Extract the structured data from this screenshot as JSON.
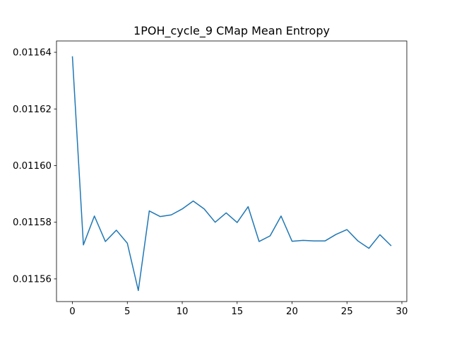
{
  "chart_data": {
    "type": "line",
    "title": "1POH_cycle_9 CMap Mean Entropy",
    "xlabel": "",
    "ylabel": "",
    "xlim": [
      -1.45,
      30.45
    ],
    "ylim": [
      0.011552,
      0.011644
    ],
    "x_ticks": [
      0,
      5,
      10,
      15,
      20,
      25,
      30
    ],
    "x_tick_labels": [
      "0",
      "5",
      "10",
      "15",
      "20",
      "25",
      "30"
    ],
    "y_ticks": [
      0.01156,
      0.01158,
      0.0116,
      0.01162,
      0.01164
    ],
    "y_tick_labels": [
      "0.01156",
      "0.01158",
      "0.01160",
      "0.01162",
      "0.01164"
    ],
    "grid": false,
    "legend": "none",
    "series": [
      {
        "color": "#1f77b4",
        "x": [
          0,
          1,
          2,
          3,
          4,
          5,
          6,
          7,
          8,
          9,
          10,
          11,
          12,
          13,
          14,
          15,
          16,
          17,
          18,
          19,
          20,
          21,
          22,
          23,
          24,
          25,
          26,
          27,
          28,
          29
        ],
        "y": [
          0.0116384,
          0.011572,
          0.0115822,
          0.0115732,
          0.0115772,
          0.0115726,
          0.0115559,
          0.011584,
          0.011582,
          0.0115826,
          0.0115847,
          0.0115875,
          0.0115847,
          0.01158,
          0.0115833,
          0.0115799,
          0.0115855,
          0.0115732,
          0.0115752,
          0.0115822,
          0.0115733,
          0.0115736,
          0.0115734,
          0.0115734,
          0.0115757,
          0.0115774,
          0.0115734,
          0.0115708,
          0.0115756,
          0.0115718
        ]
      }
    ]
  }
}
